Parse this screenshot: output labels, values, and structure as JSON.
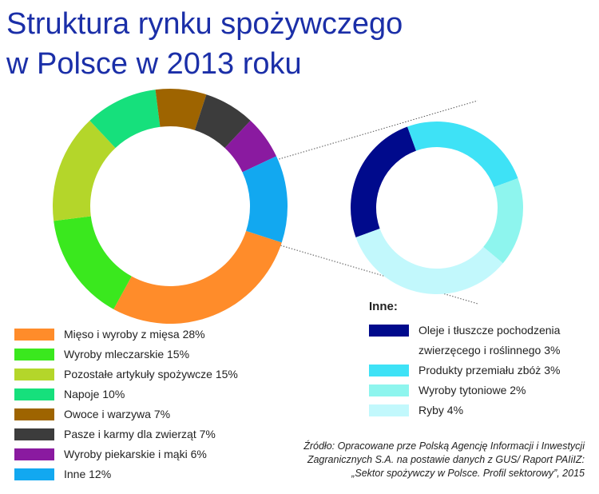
{
  "chart_data": [
    {
      "type": "pie",
      "donut": true,
      "title": [
        "Struktura rynku spożywczego",
        "w Polsce w 2013 roku"
      ],
      "categories": [
        "Mięso i wyroby z mięsa",
        "Wyroby mleczarskie",
        "Pozostałe artykuły spożywcze",
        "Napoje",
        "Owoce i warzywa",
        "Pasze i karmy dla zwierząt",
        "Wyroby piekarskie i mąki",
        "Inne"
      ],
      "values": [
        28,
        15,
        15,
        10,
        7,
        7,
        6,
        12
      ],
      "value_labels": [
        "28%",
        "15%",
        "15%",
        "10%",
        "7%",
        "7%",
        "6%",
        "12%"
      ],
      "colors": [
        "#ff8c2a",
        "#3ae81e",
        "#b4d62a",
        "#16e07c",
        "#9e6400",
        "#3c3c3c",
        "#8a1aa0",
        "#12a8f0"
      ]
    },
    {
      "type": "pie",
      "donut": true,
      "title": "Inne:",
      "categories": [
        "Oleje i tłuszcze pochodzenia zwierzęcego i roślinnego",
        "Produkty przemiału zbóż",
        "Wyroby tytoniowe",
        "Ryby"
      ],
      "values": [
        3,
        3,
        2,
        4
      ],
      "value_labels": [
        "3%",
        "3%",
        "2%",
        "4%"
      ],
      "colors": [
        "#000a8c",
        "#3ee2f6",
        "#8ef5ee",
        "#c2f8fc"
      ]
    }
  ],
  "source": [
    "Źródło: Opracowane prze Polską Agencję Informacji i Inwestycji",
    "Zagranicznych S.A. na postawie danych z GUS/ Raport PAIiIZ:",
    "„Sektor spożywczy w Polsce. Profil sektorowy”, 2015"
  ]
}
